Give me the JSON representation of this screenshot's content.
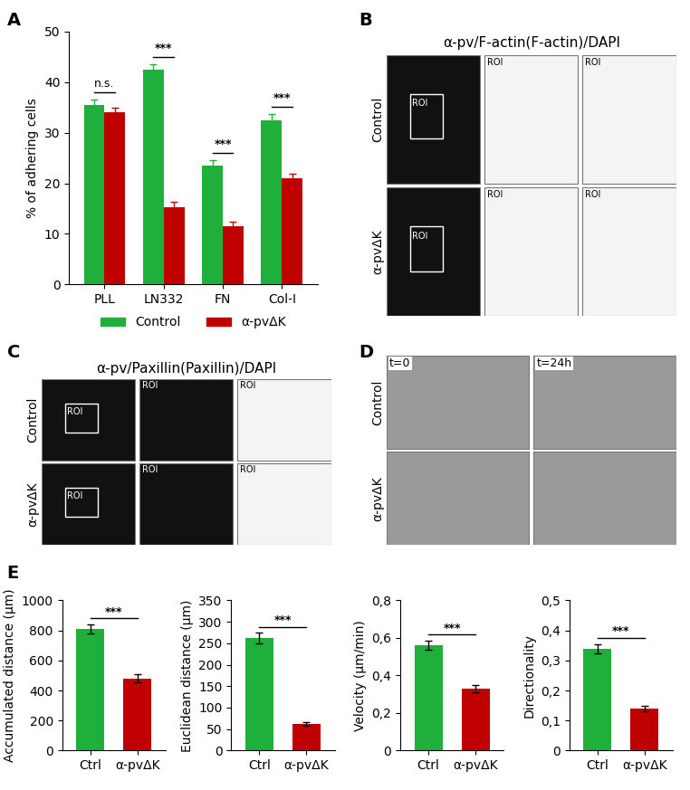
{
  "panel_labels": [
    "A",
    "B",
    "C",
    "D",
    "E"
  ],
  "chart_data": [
    {
      "type": "bar",
      "ylabel": "% of adhering cells",
      "categories": [
        "PLL",
        "LN332",
        "FN",
        "Col-I"
      ],
      "series": [
        {
          "name": "Control",
          "color": "#1fb03c",
          "values": [
            35.5,
            42.5,
            23.5,
            32.5
          ],
          "errors": [
            1.0,
            1.0,
            1.0,
            1.2
          ]
        },
        {
          "name": "α-pvΔK",
          "color": "#c00000",
          "values": [
            34.0,
            15.3,
            11.5,
            21.0
          ],
          "errors": [
            1.0,
            1.0,
            0.9,
            0.9
          ]
        }
      ],
      "annotations": [
        "n.s.",
        "***",
        "***",
        "***"
      ],
      "ylim": [
        0,
        50
      ],
      "yticks": [
        0,
        10,
        20,
        30,
        40,
        50
      ],
      "legend": "lower center"
    },
    {
      "type": "bar",
      "ylabel": "Accumulated distance (µm)",
      "categories": [
        "Ctrl",
        "α-pvΔK"
      ],
      "values": [
        810,
        480
      ],
      "errors": [
        30,
        28
      ],
      "colors": [
        "#1fb03c",
        "#c00000"
      ],
      "annotations": [
        "***"
      ],
      "ylim": [
        0,
        1000
      ],
      "yticks": [
        0,
        200,
        400,
        600,
        800,
        1000
      ]
    },
    {
      "type": "bar",
      "ylabel": "Euclidean distance (µm)",
      "categories": [
        "Ctrl",
        "α-pvΔK"
      ],
      "values": [
        262,
        62
      ],
      "errors": [
        12,
        5
      ],
      "colors": [
        "#1fb03c",
        "#c00000"
      ],
      "annotations": [
        "***"
      ],
      "ylim": [
        0,
        350
      ],
      "yticks": [
        0,
        50,
        100,
        150,
        200,
        250,
        300,
        350
      ]
    },
    {
      "type": "bar",
      "ylabel": "Velocity (µm/min)",
      "categories": [
        "Ctrl",
        "α-pvΔK"
      ],
      "values": [
        0.56,
        0.33
      ],
      "errors": [
        0.025,
        0.02
      ],
      "colors": [
        "#1fb03c",
        "#c00000"
      ],
      "annotations": [
        "***"
      ],
      "ylim": [
        0,
        0.8
      ],
      "yticks": [
        0,
        {
          "value": 0.2,
          "label": "0,2"
        },
        {
          "value": 0.4,
          "label": "0,4"
        },
        {
          "value": 0.6,
          "label": "0,6"
        },
        {
          "value": 0.8,
          "label": "0,8"
        }
      ]
    },
    {
      "type": "bar",
      "ylabel": "Directionality",
      "categories": [
        "Ctrl",
        "α-pvΔK"
      ],
      "values": [
        0.34,
        0.14
      ],
      "errors": [
        0.015,
        0.01
      ],
      "colors": [
        "#1fb03c",
        "#c00000"
      ],
      "annotations": [
        "***"
      ],
      "ylim": [
        0,
        0.5
      ],
      "yticks": [
        0,
        {
          "value": 0.1,
          "label": "0,1"
        },
        {
          "value": 0.2,
          "label": "0,2"
        },
        {
          "value": 0.3,
          "label": "0,3"
        },
        {
          "value": 0.4,
          "label": "0,4"
        },
        {
          "value": 0.5,
          "label": "0,5"
        }
      ]
    }
  ],
  "images": {
    "B": {
      "title": "α-pv/F-actin(F-actin)/DAPI",
      "rows": [
        "Control",
        "α-pvΔK"
      ],
      "inset": "ROI"
    },
    "C": {
      "title": "α-pv/Paxillin(Paxillin)/DAPI",
      "rows": [
        "Control",
        "α-pvΔK"
      ],
      "inset": "ROI"
    },
    "D": {
      "columns": [
        "t=0",
        "t=24h"
      ],
      "rows": [
        "Control",
        "α-pvΔK"
      ]
    }
  }
}
